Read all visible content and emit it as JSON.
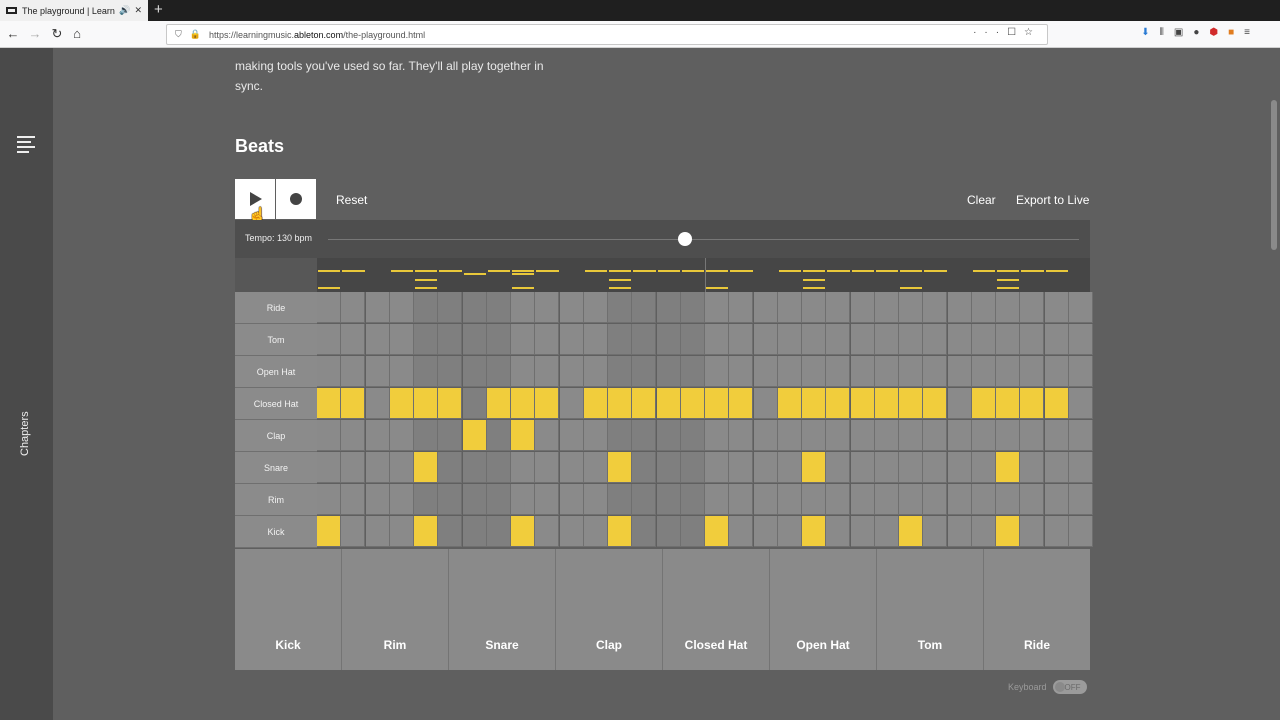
{
  "browser": {
    "tab_title": "The playground | Learning M",
    "url_prefix": "https://learningmusic.",
    "url_host": "ableton.com",
    "url_path": "/the-playground.html"
  },
  "sidebar": {
    "chapters_label": "Chapters"
  },
  "intro": {
    "text": "making tools you've used so far. They'll all play together in sync."
  },
  "section": {
    "title": "Beats"
  },
  "controls": {
    "reset_label": "Reset",
    "clear_label": "Clear",
    "export_label": "Export to Live"
  },
  "tempo": {
    "label": "Tempo: 130 bpm",
    "bpm": 130
  },
  "rows": [
    "Ride",
    "Tom",
    "Open Hat",
    "Closed Hat",
    "Clap",
    "Snare",
    "Rim",
    "Kick"
  ],
  "steps": 32,
  "pattern": {
    "Ride": [],
    "Tom": [],
    "Open Hat": [],
    "Closed Hat": [
      0,
      1,
      3,
      4,
      5,
      7,
      8,
      9,
      11,
      12,
      13,
      14,
      15,
      16,
      17,
      19,
      20,
      21,
      22,
      23,
      24,
      25,
      27,
      28,
      29,
      30
    ],
    "Clap": [
      6,
      8
    ],
    "Snare": [
      4,
      12,
      20,
      28
    ],
    "Rim": [],
    "Kick": [
      0,
      4,
      8,
      12,
      16,
      20,
      24,
      28
    ]
  },
  "pads": [
    "Kick",
    "Rim",
    "Snare",
    "Clap",
    "Closed Hat",
    "Open Hat",
    "Tom",
    "Ride"
  ],
  "keyboard": {
    "label": "Keyboard",
    "state": "OFF"
  }
}
